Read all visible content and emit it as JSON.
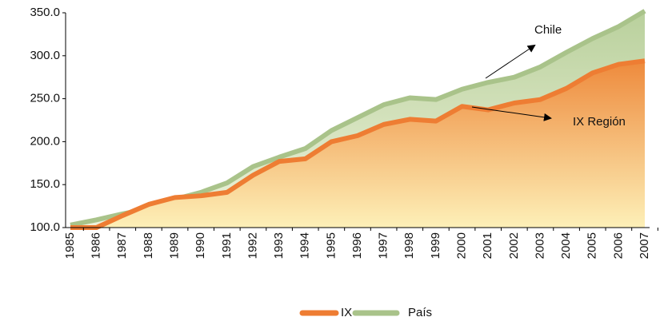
{
  "chart_data": {
    "type": "area",
    "categories": [
      "1985",
      "1986",
      "1987",
      "1988",
      "1989",
      "1990",
      "1991",
      "1992",
      "1993",
      "1994",
      "1995",
      "1996",
      "1997",
      "1998",
      "1999",
      "2000",
      "2001",
      "2002",
      "2003",
      "2004",
      "2005",
      "2006",
      "2007"
    ],
    "series": [
      {
        "name": "IX",
        "color": "#ee7d33",
        "values": [
          100,
          100,
          114,
          127,
          135,
          137,
          141,
          161,
          177,
          180,
          200,
          207,
          220,
          226,
          224,
          241,
          237,
          245,
          249,
          262,
          280,
          290,
          294
        ]
      },
      {
        "name": "País",
        "color": "#a9c38a",
        "values": [
          103,
          109,
          116,
          122,
          133,
          141,
          152,
          171,
          182,
          192,
          213,
          228,
          243,
          251,
          249,
          261,
          269,
          275,
          287,
          304,
          320,
          334,
          352
        ]
      }
    ],
    "ylim": [
      100,
      350
    ],
    "yticks": [
      {
        "value": 100,
        "label": "100.0"
      },
      {
        "value": 150,
        "label": "150.0"
      },
      {
        "value": 200,
        "label": "200.0"
      },
      {
        "value": 250,
        "label": "250.0"
      },
      {
        "value": 300,
        "label": "300.0"
      },
      {
        "value": 350,
        "label": "350.0"
      }
    ],
    "annotations": [
      "Chile",
      "IX Región"
    ]
  }
}
